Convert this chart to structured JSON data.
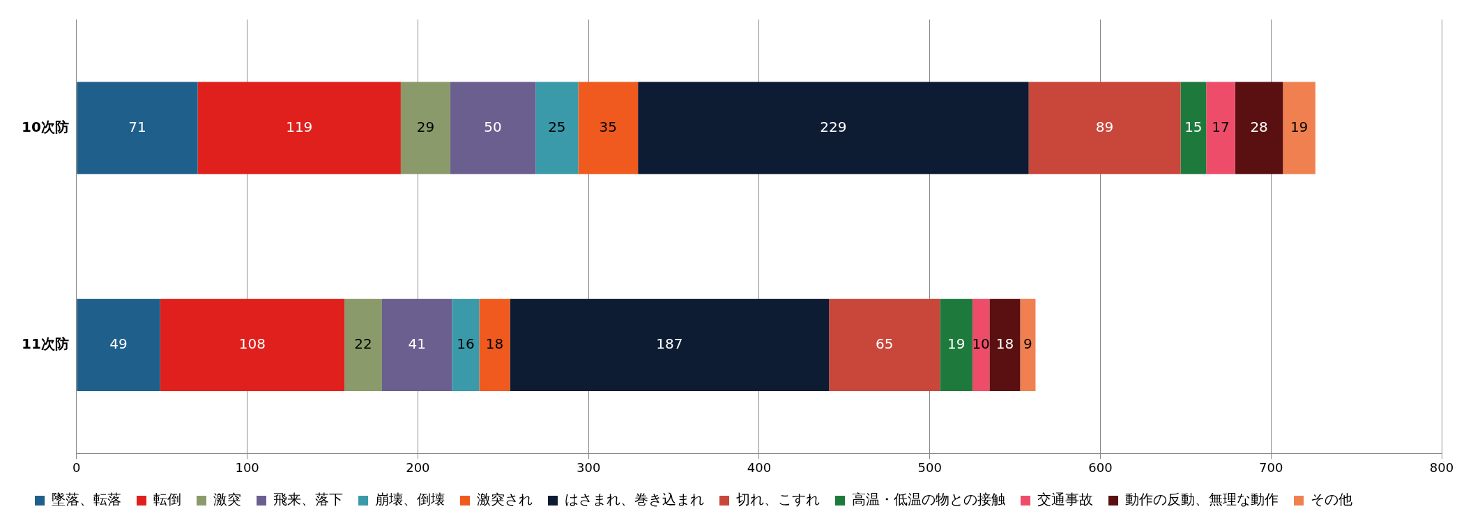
{
  "chart_data": {
    "type": "bar",
    "orientation": "horizontal",
    "stacked": true,
    "categories": [
      "10次防",
      "11次防"
    ],
    "series": [
      {
        "name": "墜落、転落",
        "color": "#1f5f8b",
        "values": [
          71,
          49
        ]
      },
      {
        "name": "転倒",
        "color": "#e0201c",
        "values": [
          119,
          108
        ]
      },
      {
        "name": "激突",
        "color": "#8a9a6a",
        "values": [
          29,
          22
        ]
      },
      {
        "name": "飛来、落下",
        "color": "#6a5f8f",
        "values": [
          50,
          41
        ]
      },
      {
        "name": "崩壊、倒壊",
        "color": "#3a9aaa",
        "values": [
          25,
          16
        ]
      },
      {
        "name": "激突され",
        "color": "#f05a1e",
        "values": [
          35,
          18
        ]
      },
      {
        "name": "はさまれ、巻き込まれ",
        "color": "#0d1b33",
        "values": [
          229,
          187
        ]
      },
      {
        "name": "切れ、こすれ",
        "color": "#c8463a",
        "values": [
          89,
          65
        ]
      },
      {
        "name": "高温・低温の物との接触",
        "color": "#1e7a3c",
        "values": [
          15,
          19
        ]
      },
      {
        "name": "交通事故",
        "color": "#ee4d6a",
        "values": [
          17,
          10
        ]
      },
      {
        "name": "動作の反動、無理な動作",
        "color": "#5a1010",
        "values": [
          28,
          18
        ]
      },
      {
        "name": "その他",
        "color": "#f08050",
        "values": [
          19,
          9
        ]
      }
    ],
    "xlim": [
      0,
      800
    ],
    "xticks": [
      0,
      100,
      200,
      300,
      400,
      500,
      600,
      700,
      800
    ],
    "grid": "x",
    "legend": "bottom",
    "data_labels": true
  }
}
